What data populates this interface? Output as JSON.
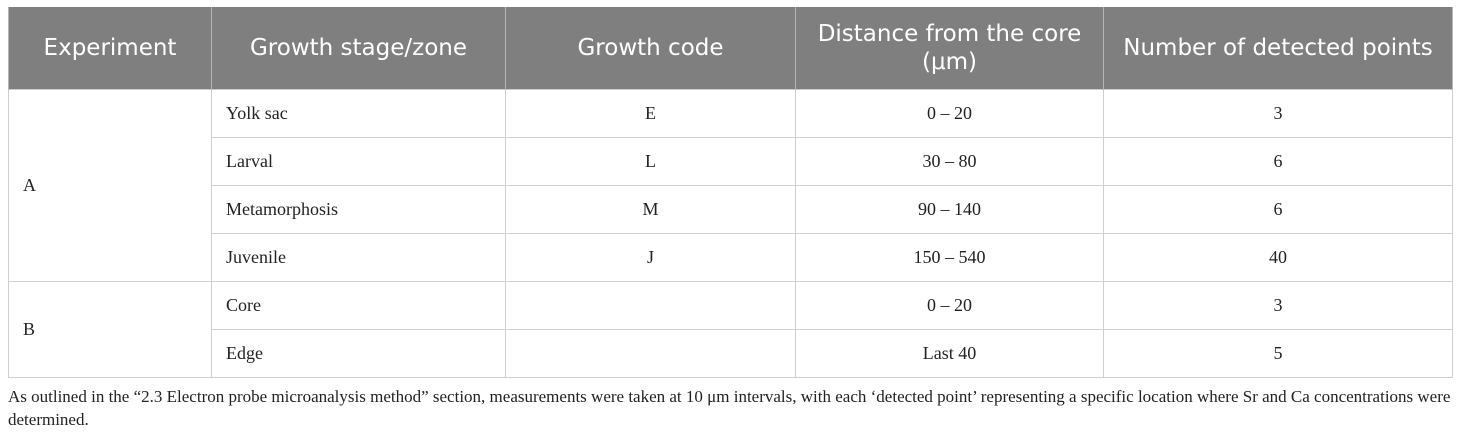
{
  "table": {
    "headers": [
      "Experiment",
      "Growth stage/zone",
      "Growth code",
      "Distance from the core (μm)",
      "Number of detected points"
    ],
    "groups": [
      {
        "experiment": "A",
        "rows": [
          {
            "stage": "Yolk sac",
            "code": "E",
            "distance": "0 – 20",
            "points": "3"
          },
          {
            "stage": "Larval",
            "code": "L",
            "distance": "30 – 80",
            "points": "6"
          },
          {
            "stage": "Metamorphosis",
            "code": "M",
            "distance": "90 – 140",
            "points": "6"
          },
          {
            "stage": "Juvenile",
            "code": "J",
            "distance": "150 – 540",
            "points": "40"
          }
        ]
      },
      {
        "experiment": "B",
        "rows": [
          {
            "stage": "Core",
            "code": "",
            "distance": "0 – 20",
            "points": "3"
          },
          {
            "stage": "Edge",
            "code": "",
            "distance": "Last 40",
            "points": "5"
          }
        ]
      }
    ]
  },
  "footnote": "As outlined in the “2.3 Electron probe microanalysis method” section, measurements were taken at 10 μm intervals, with each ‘detected point’ representing a specific location where Sr and Ca concentrations were determined.",
  "colors": {
    "header_bg": "#7e7f7e",
    "header_text": "#ffffff",
    "grid": "#cfcfcf"
  }
}
